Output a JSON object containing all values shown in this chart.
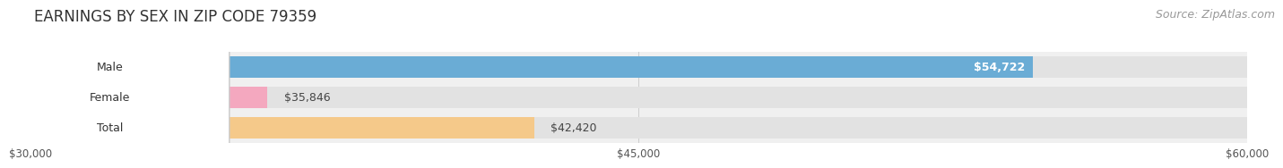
{
  "title": "EARNINGS BY SEX IN ZIP CODE 79359",
  "source": "Source: ZipAtlas.com",
  "categories": [
    "Male",
    "Female",
    "Total"
  ],
  "values": [
    54722,
    35846,
    42420
  ],
  "bar_colors": [
    "#6aacd5",
    "#f4a8bf",
    "#f5c98a"
  ],
  "bar_labels": [
    "$54,722",
    "$35,846",
    "$42,420"
  ],
  "label_inside": [
    true,
    false,
    false
  ],
  "xlim_min": 30000,
  "xlim_max": 60000,
  "xticks": [
    30000,
    45000,
    60000
  ],
  "xtick_labels": [
    "$30,000",
    "$45,000",
    "$60,000"
  ],
  "background_color": "#f0f0f0",
  "bar_bg_color": "#e2e2e2",
  "row_bg_color": "#f7f7f7",
  "title_fontsize": 12,
  "source_fontsize": 9,
  "label_fontsize": 9,
  "cat_fontsize": 9
}
